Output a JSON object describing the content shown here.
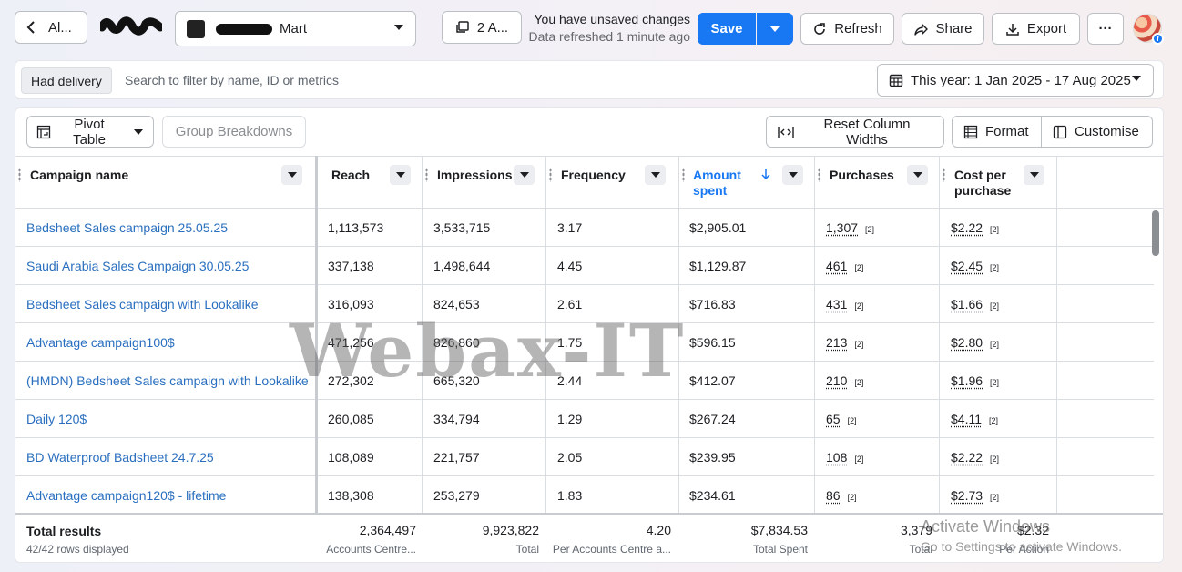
{
  "topbar": {
    "back_label": "Al...",
    "account_name_suffix": "Mart",
    "selection_label": "2 A...",
    "unsaved_text": "You have unsaved changes",
    "refreshed_text": "Data refreshed 1 minute ago",
    "save_label": "Save",
    "refresh_label": "Refresh",
    "share_label": "Share",
    "export_label": "Export",
    "more_label": "···"
  },
  "filters": {
    "chip_label": "Had delivery",
    "search_placeholder": "Search to filter by name, ID or metrics",
    "date_range_label": "This year: 1 Jan 2025 - 17 Aug 2025"
  },
  "toolbar": {
    "pivot_label": "Pivot Table",
    "group_label": "Group Breakdowns",
    "reset_label": "Reset Column Widths",
    "format_label": "Format",
    "customise_label": "Customise"
  },
  "table": {
    "headers": {
      "campaign": "Campaign name",
      "reach": "Reach",
      "impressions": "Impressions",
      "frequency": "Frequency",
      "amount_line1": "Amount",
      "amount_line2": "spent",
      "purchases": "Purchases",
      "cpp_line1": "Cost per",
      "cpp_line2": "purchase"
    },
    "sorted_column": "Amount spent",
    "rows": [
      {
        "name": "Bedsheet Sales campaign 25.05.25",
        "reach": "1,113,573",
        "impressions": "3,533,715",
        "frequency": "3.17",
        "amount": "$2,905.01",
        "purchases": "1,307",
        "cpp": "$2.22",
        "note": "[2]"
      },
      {
        "name": "Saudi Arabia Sales Campaign 30.05.25",
        "reach": "337,138",
        "impressions": "1,498,644",
        "frequency": "4.45",
        "amount": "$1,129.87",
        "purchases": "461",
        "cpp": "$2.45",
        "note": "[2]"
      },
      {
        "name": "Bedsheet Sales campaign with Lookalike",
        "reach": "316,093",
        "impressions": "824,653",
        "frequency": "2.61",
        "amount": "$716.83",
        "purchases": "431",
        "cpp": "$1.66",
        "note": "[2]"
      },
      {
        "name": "Advantage campaign100$",
        "reach": "471,256",
        "impressions": "826,860",
        "frequency": "1.75",
        "amount": "$596.15",
        "purchases": "213",
        "cpp": "$2.80",
        "note": "[2]"
      },
      {
        "name": "(HMDN) Bedsheet Sales campaign with Lookalike",
        "reach": "272,302",
        "impressions": "665,320",
        "frequency": "2.44",
        "amount": "$412.07",
        "purchases": "210",
        "cpp": "$1.96",
        "note": "[2]"
      },
      {
        "name": "Daily 120$",
        "reach": "260,085",
        "impressions": "334,794",
        "frequency": "1.29",
        "amount": "$267.24",
        "purchases": "65",
        "cpp": "$4.11",
        "note": "[2]"
      },
      {
        "name": "BD Waterproof Badsheet 24.7.25",
        "reach": "108,089",
        "impressions": "221,757",
        "frequency": "2.05",
        "amount": "$239.95",
        "purchases": "108",
        "cpp": "$2.22",
        "note": "[2]"
      },
      {
        "name": "Advantage campaign120$ - lifetime",
        "reach": "138,308",
        "impressions": "253,279",
        "frequency": "1.83",
        "amount": "$234.61",
        "purchases": "86",
        "cpp": "$2.73",
        "note": "[2]"
      }
    ],
    "totals": {
      "title": "Total results",
      "rows_displayed": "42/42 rows displayed",
      "reach": "2,364,497",
      "reach_sub": "Accounts Centre...",
      "impressions": "9,923,822",
      "impressions_sub": "Total",
      "frequency": "4.20",
      "frequency_sub": "Per Accounts Centre a...",
      "amount": "$7,834.53",
      "amount_sub": "Total Spent",
      "purchases": "3,379",
      "purchases_sub": "Total",
      "cpp": "$2.32",
      "cpp_sub": "Per Action"
    }
  },
  "overlays": {
    "watermark": "Webax-IT",
    "activate_line1": "Activate Windows",
    "activate_line2": "Go to Settings to activate Windows."
  },
  "colors": {
    "accent": "#1877f2",
    "link": "#2a6fbf"
  }
}
